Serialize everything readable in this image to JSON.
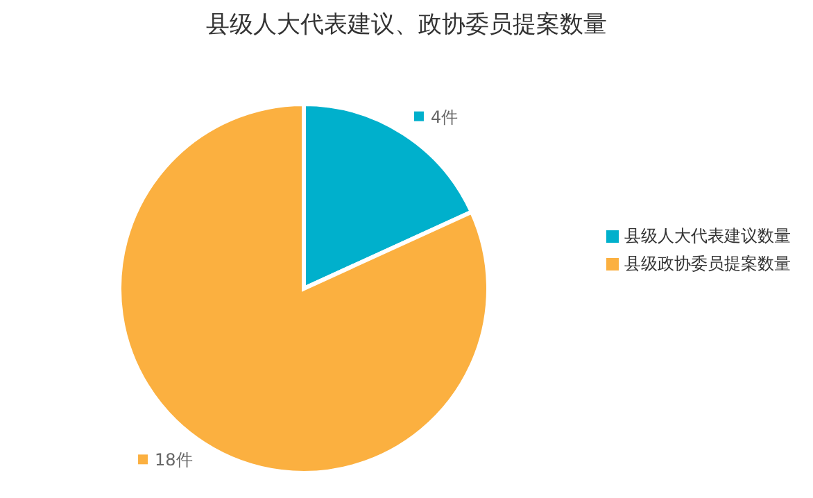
{
  "chart_data": {
    "type": "pie",
    "title": "县级人大代表建议、政协委员提案数量",
    "categories": [
      "县级人大代表建议数量",
      "县级政协委员提案数量"
    ],
    "values": [
      4,
      18
    ],
    "colors": [
      "#00b0cc",
      "#fbb040"
    ],
    "value_labels": [
      "4件",
      "18件"
    ],
    "legend": "right"
  }
}
